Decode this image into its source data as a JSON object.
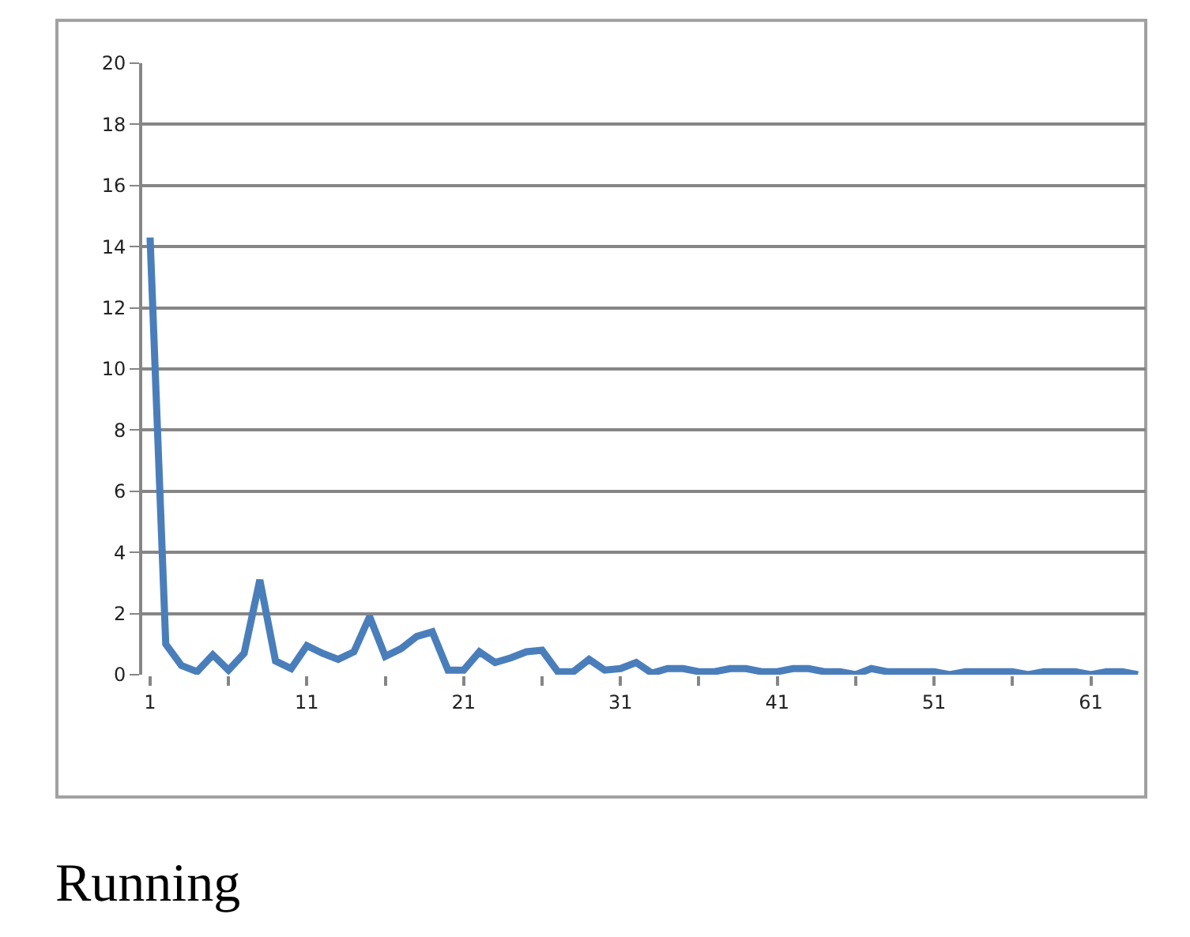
{
  "chart_data": {
    "type": "line",
    "categories": [
      "1",
      null,
      null,
      null,
      null,
      null,
      null,
      null,
      null,
      null,
      "11",
      null,
      null,
      null,
      null,
      null,
      null,
      null,
      null,
      null,
      "21",
      null,
      null,
      null,
      null,
      null,
      null,
      null,
      null,
      null,
      "31",
      null,
      null,
      null,
      null,
      null,
      null,
      null,
      null,
      null,
      "41",
      null,
      null,
      null,
      null,
      null,
      null,
      null,
      null,
      null,
      "51",
      null,
      null,
      null,
      null,
      null,
      null,
      null,
      null,
      null,
      "61",
      null,
      null,
      null
    ],
    "series": [
      {
        "color": "#4a7ebb",
        "values": [
          14.3,
          1.0,
          0.3,
          0.1,
          0.65,
          0.15,
          0.7,
          3.1,
          0.45,
          0.2,
          0.95,
          0.7,
          0.5,
          0.75,
          1.9,
          0.6,
          0.85,
          1.25,
          1.4,
          0.15,
          0.15,
          0.75,
          0.4,
          0.55,
          0.75,
          0.8,
          0.1,
          0.1,
          0.5,
          0.15,
          0.2,
          0.4,
          0.05,
          0.2,
          0.2,
          0.1,
          0.1,
          0.2,
          0.2,
          0.1,
          0.1,
          0.2,
          0.2,
          0.1,
          0.1,
          0.0,
          0.2,
          0.1,
          0.1,
          0.1,
          0.1,
          0.0,
          0.1,
          0.1,
          0.1,
          0.1,
          0.0,
          0.1,
          0.1,
          0.1,
          0.0,
          0.1,
          0.1,
          0.0
        ]
      }
    ],
    "ylim": [
      0,
      20
    ],
    "yticks": [
      0,
      2,
      4,
      6,
      8,
      10,
      12,
      14,
      16,
      18,
      20
    ],
    "grid": "y",
    "marker": "none",
    "line_style": "solid",
    "annotations": [
      "Running"
    ]
  }
}
